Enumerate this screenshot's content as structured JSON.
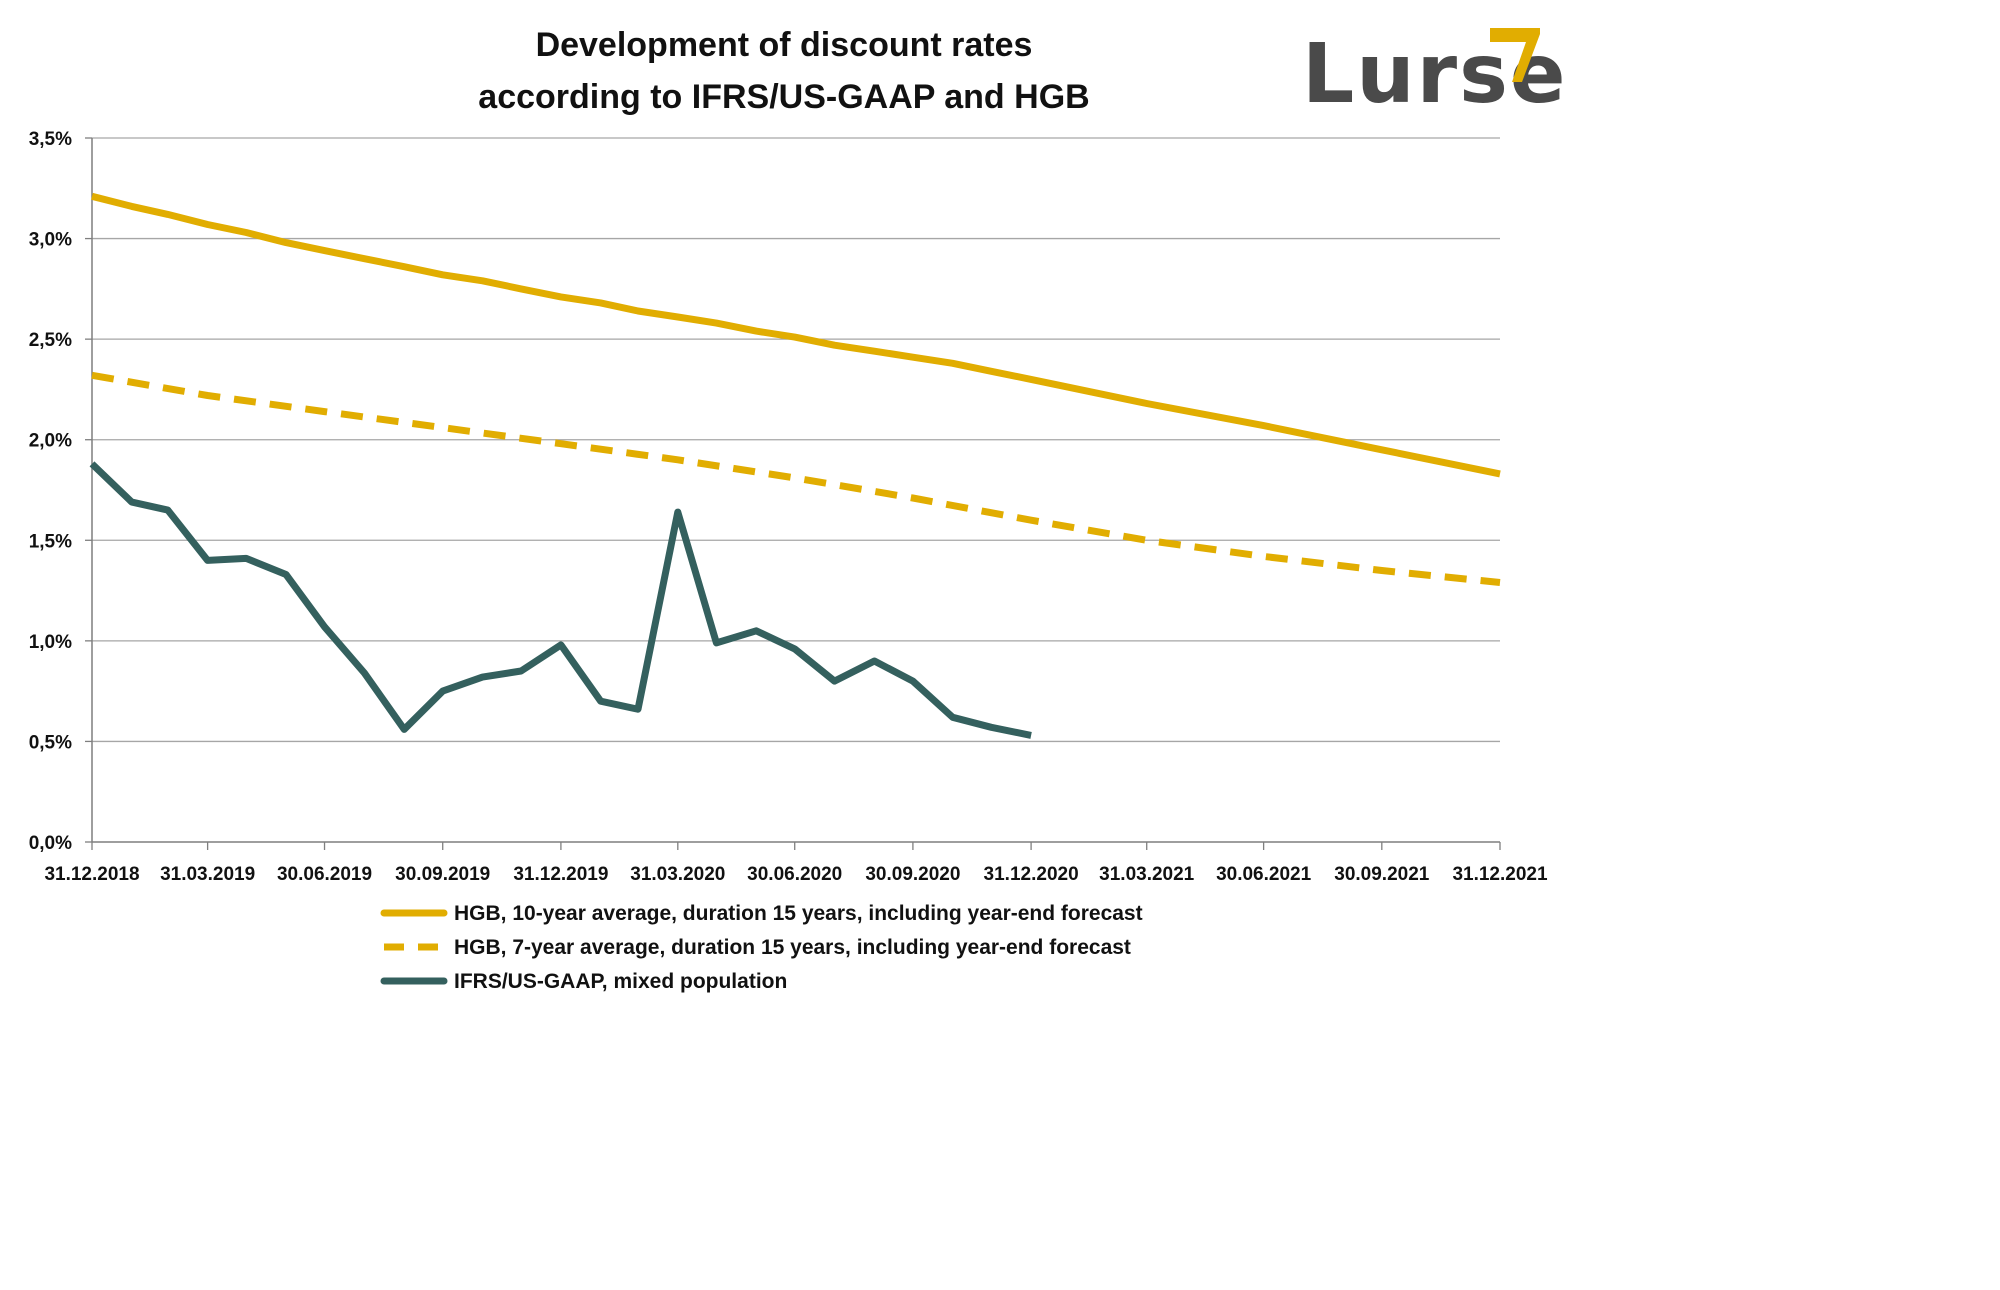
{
  "logo": {
    "text": "Lurse",
    "color": "#4a4a4a",
    "accent": "#e1ad01"
  },
  "chart_data": {
    "type": "line",
    "title": [
      "Development of discount rates",
      "according to IFRS/US-GAAP and HGB"
    ],
    "xlabel": "",
    "ylabel": "",
    "ylim": [
      0,
      3.5
    ],
    "y_ticks": [
      0,
      0.5,
      1.0,
      1.5,
      2.0,
      2.5,
      3.0,
      3.5
    ],
    "y_tick_labels": [
      "0,0%",
      "0,5%",
      "1,0%",
      "1,5%",
      "2,0%",
      "2,5%",
      "3,0%",
      "3,5%"
    ],
    "x_range": [
      "2018-12-31",
      "2021-12-31"
    ],
    "x_ticks": [
      "2018-12-31",
      "2019-03-31",
      "2019-06-30",
      "2019-09-30",
      "2019-12-31",
      "2020-03-31",
      "2020-06-30",
      "2020-09-30",
      "2020-12-31",
      "2021-03-31",
      "2021-06-30",
      "2021-09-30",
      "2021-12-31"
    ],
    "x_tick_labels": [
      "31.12.2018",
      "31.03.2019",
      "30.06.2019",
      "30.09.2019",
      "31.12.2019",
      "31.03.2020",
      "30.06.2020",
      "30.09.2020",
      "31.12.2020",
      "31.03.2021",
      "30.06.2021",
      "30.09.2021",
      "31.12.2021"
    ],
    "grid": "horizontal",
    "legend_position": "bottom",
    "series": [
      {
        "name": "HGB, 10-year average, duration 15 years, including year-end forecast",
        "color": "#e1ad01",
        "style": "solid",
        "x": [
          "2018-12-31",
          "2019-01-31",
          "2019-02-28",
          "2019-03-31",
          "2019-04-30",
          "2019-05-31",
          "2019-06-30",
          "2019-07-31",
          "2019-08-31",
          "2019-09-30",
          "2019-10-31",
          "2019-11-30",
          "2019-12-31",
          "2020-01-31",
          "2020-02-29",
          "2020-03-31",
          "2020-04-30",
          "2020-05-31",
          "2020-06-30",
          "2020-07-31",
          "2020-08-31",
          "2020-09-30",
          "2020-10-31",
          "2020-11-30",
          "2020-12-31",
          "2021-03-31",
          "2021-06-30",
          "2021-09-30",
          "2021-12-31"
        ],
        "values": [
          3.21,
          3.16,
          3.12,
          3.07,
          3.03,
          2.98,
          2.94,
          2.9,
          2.86,
          2.82,
          2.79,
          2.75,
          2.71,
          2.68,
          2.64,
          2.61,
          2.58,
          2.54,
          2.51,
          2.47,
          2.44,
          2.41,
          2.38,
          2.34,
          2.3,
          2.18,
          2.07,
          1.95,
          1.83
        ]
      },
      {
        "name": "HGB, 7-year average, duration 15 years, including year-end forecast",
        "color": "#e1ad01",
        "style": "dashed",
        "x": [
          "2018-12-31",
          "2019-03-31",
          "2019-06-30",
          "2019-09-30",
          "2019-12-31",
          "2020-03-31",
          "2020-06-30",
          "2020-09-30",
          "2020-12-31",
          "2021-03-31",
          "2021-06-30",
          "2021-09-30",
          "2021-12-31"
        ],
        "values": [
          2.32,
          2.22,
          2.14,
          2.06,
          1.98,
          1.9,
          1.81,
          1.71,
          1.6,
          1.5,
          1.42,
          1.35,
          1.29
        ]
      },
      {
        "name": "IFRS/US-GAAP, mixed population",
        "color": "#34605e",
        "style": "solid",
        "x": [
          "2018-12-31",
          "2019-01-31",
          "2019-02-28",
          "2019-03-31",
          "2019-04-30",
          "2019-05-31",
          "2019-06-30",
          "2019-07-31",
          "2019-08-31",
          "2019-09-30",
          "2019-10-31",
          "2019-11-30",
          "2019-12-31",
          "2020-01-31",
          "2020-02-29",
          "2020-03-31",
          "2020-04-30",
          "2020-05-31",
          "2020-06-30",
          "2020-07-31",
          "2020-08-31",
          "2020-09-30",
          "2020-10-31",
          "2020-11-30",
          "2020-12-31"
        ],
        "values": [
          1.88,
          1.69,
          1.65,
          1.4,
          1.41,
          1.33,
          1.07,
          0.84,
          0.56,
          0.75,
          0.82,
          0.85,
          0.98,
          0.7,
          0.66,
          1.64,
          0.99,
          1.05,
          0.96,
          0.8,
          0.9,
          0.8,
          0.62,
          0.57,
          0.53
        ]
      }
    ]
  }
}
